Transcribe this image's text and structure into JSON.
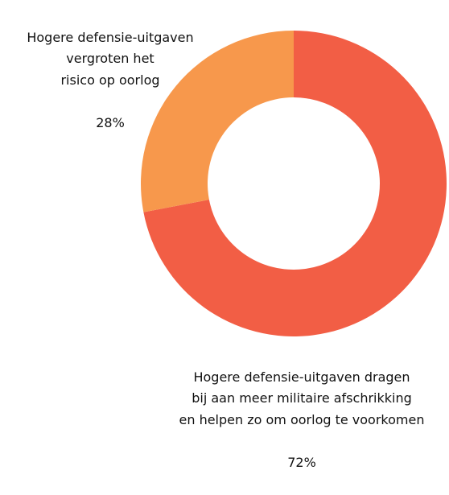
{
  "chart_data": {
    "type": "donut",
    "categories": [
      "Hogere defensie-uitgaven dragen\nbij aan meer militaire afschrikking\nen helpen zo om oorlog te voorkomen",
      "Hogere defensie-uitgaven\nvergroten het\nrisico op oorlog"
    ],
    "values": [
      72,
      28
    ],
    "value_labels": [
      "72%",
      "28%"
    ],
    "colors": [
      "#f25e45",
      "#f7984c"
    ]
  }
}
